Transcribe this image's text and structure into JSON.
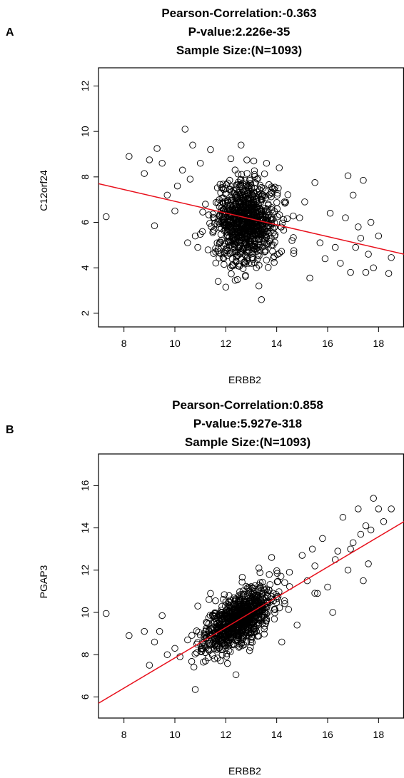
{
  "chart_data": [
    {
      "panel_label": "A",
      "type": "scatter",
      "title_lines": [
        "Pearson-Correlation:-0.363",
        "P-value:2.226e-35",
        "Sample Size:(N=1093)"
      ],
      "xlabel": "ERBB2",
      "ylabel": "C12orf24",
      "xlim": [
        7.0,
        19.0
      ],
      "ylim": [
        1.4,
        12.8
      ],
      "x_ticks": [
        8,
        10,
        12,
        14,
        16,
        18
      ],
      "y_ticks": [
        2,
        4,
        6,
        8,
        10,
        12
      ],
      "fit_line": {
        "x": [
          7.0,
          19.0
        ],
        "y": [
          7.7,
          4.6
        ],
        "color": "#e8101c"
      },
      "sample_size": 1093,
      "points_shown": [
        [
          7.3,
          6.25
        ],
        [
          8.2,
          8.9
        ],
        [
          8.8,
          8.15
        ],
        [
          9.0,
          8.75
        ],
        [
          9.2,
          5.85
        ],
        [
          9.3,
          9.25
        ],
        [
          9.5,
          8.6
        ],
        [
          9.7,
          7.2
        ],
        [
          10.0,
          6.5
        ],
        [
          10.1,
          7.6
        ],
        [
          10.3,
          8.3
        ],
        [
          10.4,
          10.1
        ],
        [
          10.5,
          5.1
        ],
        [
          10.6,
          7.9
        ],
        [
          10.7,
          9.4
        ],
        [
          10.8,
          5.4
        ],
        [
          10.9,
          4.9
        ],
        [
          11.0,
          8.6
        ],
        [
          11.2,
          6.8
        ],
        [
          11.4,
          9.2
        ],
        [
          11.5,
          5.6
        ],
        [
          11.6,
          4.7
        ],
        [
          11.7,
          3.4
        ],
        [
          11.8,
          7.3
        ],
        [
          12.0,
          3.15
        ],
        [
          12.2,
          8.8
        ],
        [
          12.4,
          4.3
        ],
        [
          12.6,
          9.4
        ],
        [
          12.9,
          4.2
        ],
        [
          13.1,
          8.7
        ],
        [
          13.3,
          3.2
        ],
        [
          13.4,
          2.6
        ],
        [
          13.6,
          8.6
        ],
        [
          13.9,
          4.5
        ],
        [
          14.1,
          8.4
        ],
        [
          14.3,
          6.9
        ],
        [
          14.6,
          5.2
        ],
        [
          14.9,
          6.2
        ],
        [
          15.1,
          6.9
        ],
        [
          15.3,
          3.55
        ],
        [
          15.5,
          7.75
        ],
        [
          15.7,
          5.1
        ],
        [
          15.9,
          4.4
        ],
        [
          16.1,
          6.4
        ],
        [
          16.3,
          4.9
        ],
        [
          16.5,
          4.2
        ],
        [
          16.7,
          6.2
        ],
        [
          16.8,
          8.05
        ],
        [
          16.9,
          3.8
        ],
        [
          17.0,
          7.2
        ],
        [
          17.2,
          5.8
        ],
        [
          17.4,
          7.85
        ],
        [
          17.5,
          3.8
        ],
        [
          17.6,
          4.6
        ],
        [
          17.7,
          6.0
        ],
        [
          17.8,
          4.0
        ],
        [
          18.0,
          5.4
        ],
        [
          18.4,
          3.75
        ],
        [
          18.5,
          4.45
        ],
        [
          17.3,
          5.3
        ],
        [
          17.1,
          4.9
        ]
      ],
      "dense_cluster": {
        "center": [
          12.8,
          6.0
        ],
        "sd": [
          0.6,
          0.9
        ],
        "n": 900
      }
    },
    {
      "panel_label": "B",
      "type": "scatter",
      "title_lines": [
        "Pearson-Correlation:0.858",
        "P-value:5.927e-318",
        "Sample Size:(N=1093)"
      ],
      "xlabel": "ERBB2",
      "ylabel": "PGAP3",
      "xlim": [
        7.0,
        19.0
      ],
      "ylim": [
        5.0,
        17.5
      ],
      "x_ticks": [
        8,
        10,
        12,
        14,
        16,
        18
      ],
      "y_ticks": [
        6,
        8,
        10,
        12,
        14,
        16
      ],
      "fit_line": {
        "x": [
          7.0,
          19.0
        ],
        "y": [
          5.7,
          14.3
        ],
        "color": "#e8101c"
      },
      "sample_size": 1093,
      "points_shown": [
        [
          7.3,
          9.95
        ],
        [
          8.2,
          8.9
        ],
        [
          8.8,
          9.1
        ],
        [
          9.0,
          7.5
        ],
        [
          9.2,
          8.6
        ],
        [
          9.4,
          9.1
        ],
        [
          9.5,
          9.85
        ],
        [
          9.7,
          8.0
        ],
        [
          10.0,
          8.3
        ],
        [
          10.2,
          7.9
        ],
        [
          10.5,
          8.7
        ],
        [
          10.8,
          6.35
        ],
        [
          10.9,
          10.3
        ],
        [
          11.2,
          7.7
        ],
        [
          11.4,
          10.9
        ],
        [
          12.4,
          7.05
        ],
        [
          13.3,
          12.1
        ],
        [
          13.8,
          12.6
        ],
        [
          14.2,
          8.6
        ],
        [
          14.5,
          11.9
        ],
        [
          14.8,
          9.4
        ],
        [
          15.0,
          12.7
        ],
        [
          15.2,
          11.5
        ],
        [
          15.4,
          13.0
        ],
        [
          15.6,
          10.9
        ],
        [
          15.8,
          13.5
        ],
        [
          16.0,
          11.2
        ],
        [
          16.2,
          10.0
        ],
        [
          16.4,
          12.9
        ],
        [
          16.6,
          14.5
        ],
        [
          16.8,
          12.0
        ],
        [
          17.0,
          13.3
        ],
        [
          17.2,
          14.9
        ],
        [
          17.4,
          11.5
        ],
        [
          17.5,
          14.1
        ],
        [
          17.6,
          12.3
        ],
        [
          17.8,
          15.4
        ],
        [
          18.0,
          14.9
        ],
        [
          18.2,
          14.3
        ],
        [
          18.5,
          14.9
        ],
        [
          17.3,
          13.7
        ],
        [
          16.9,
          13.0
        ],
        [
          15.5,
          12.2
        ],
        [
          16.3,
          12.5
        ],
        [
          17.7,
          13.9
        ]
      ],
      "dense_cluster": {
        "center": [
          12.5,
          9.7
        ],
        "sd": [
          0.65,
          0.6
        ],
        "n": 900,
        "slope": 0.72
      }
    }
  ]
}
